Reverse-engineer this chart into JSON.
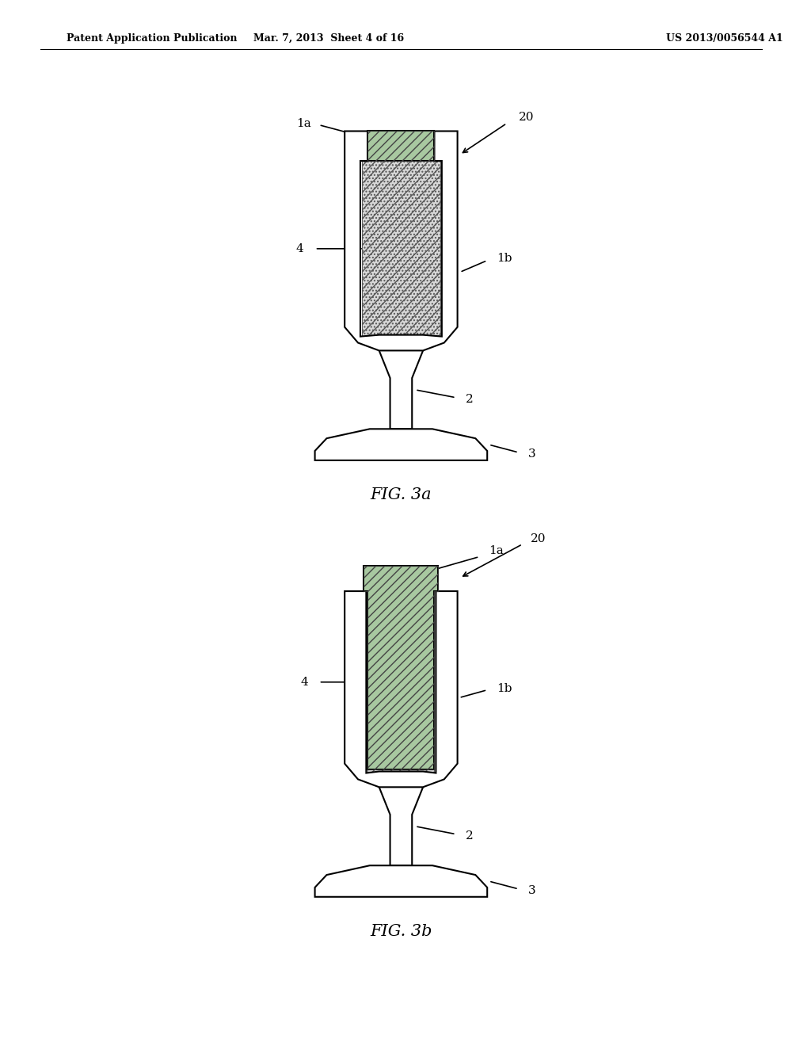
{
  "title_left": "Patent Application Publication",
  "title_mid": "Mar. 7, 2013  Sheet 4 of 16",
  "title_right": "US 2013/0056544 A1",
  "fig_a_label": "FIG. 3a",
  "fig_b_label": "FIG. 3b",
  "background": "#ffffff",
  "line_color": "#000000",
  "hatch_color_diag": "#4a7a4a",
  "hatch_color_dot": "#c8c8c8",
  "labels": {
    "1a": "1a",
    "1b": "1b",
    "2": "2",
    "3": "3",
    "4": "4",
    "20": "20"
  }
}
